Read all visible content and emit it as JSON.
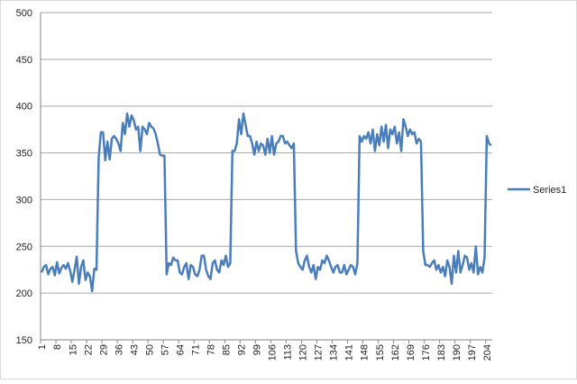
{
  "chart_data": {
    "type": "line",
    "categories": [
      "1",
      null,
      null,
      null,
      null,
      null,
      null,
      "8",
      null,
      null,
      null,
      null,
      null,
      null,
      "15",
      null,
      null,
      null,
      null,
      null,
      null,
      "22",
      null,
      null,
      null,
      null,
      null,
      null,
      "29",
      null,
      null,
      null,
      null,
      null,
      null,
      "36",
      null,
      null,
      null,
      null,
      null,
      null,
      "43",
      null,
      null,
      null,
      null,
      null,
      null,
      "50",
      null,
      null,
      null,
      null,
      null,
      null,
      "57",
      null,
      null,
      null,
      null,
      null,
      null,
      "64",
      null,
      null,
      null,
      null,
      null,
      null,
      "71",
      null,
      null,
      null,
      null,
      null,
      null,
      "78",
      null,
      null,
      null,
      null,
      null,
      null,
      "85",
      null,
      null,
      null,
      null,
      null,
      null,
      "92",
      null,
      null,
      null,
      null,
      null,
      null,
      "99",
      null,
      null,
      null,
      null,
      null,
      null,
      "106",
      null,
      null,
      null,
      null,
      null,
      null,
      "113",
      null,
      null,
      null,
      null,
      null,
      null,
      "120",
      null,
      null,
      null,
      null,
      null,
      null,
      "127",
      null,
      null,
      null,
      null,
      null,
      null,
      "134",
      null,
      null,
      null,
      null,
      null,
      null,
      "141",
      null,
      null,
      null,
      null,
      null,
      null,
      "148",
      null,
      null,
      null,
      null,
      null,
      null,
      "155",
      null,
      null,
      null,
      null,
      null,
      null,
      "162",
      null,
      null,
      null,
      null,
      null,
      null,
      "169",
      null,
      null,
      null,
      null,
      null,
      null,
      "176",
      null,
      null,
      null,
      null,
      null,
      null,
      "183",
      null,
      null,
      null,
      null,
      null,
      null,
      "190",
      null,
      null,
      null,
      null,
      null,
      null,
      "197",
      null,
      null,
      null,
      null,
      null,
      null,
      "204",
      null,
      null
    ],
    "series": [
      {
        "name": "Series1",
        "color": "#4a7ebb",
        "values": [
          222,
          228,
          230,
          220,
          226,
          228,
          219,
          233,
          221,
          227,
          230,
          226,
          232,
          224,
          212,
          225,
          239,
          210,
          228,
          235,
          214,
          222,
          218,
          202,
          226,
          225,
          345,
          372,
          372,
          342,
          362,
          343,
          365,
          368,
          365,
          360,
          352,
          382,
          370,
          392,
          378,
          390,
          385,
          375,
          378,
          352,
          378,
          375,
          370,
          382,
          378,
          376,
          370,
          360,
          348,
          347,
          347,
          220,
          232,
          230,
          238,
          235,
          235,
          222,
          220,
          228,
          232,
          215,
          230,
          228,
          220,
          218,
          225,
          240,
          240,
          225,
          218,
          215,
          232,
          235,
          225,
          222,
          235,
          230,
          240,
          228,
          232,
          352,
          352,
          360,
          386,
          370,
          392,
          380,
          368,
          368,
          360,
          348,
          362,
          352,
          360,
          358,
          348,
          365,
          350,
          368,
          348,
          360,
          362,
          368,
          368,
          360,
          362,
          358,
          355,
          360,
          245,
          232,
          228,
          225,
          235,
          240,
          228,
          222,
          230,
          215,
          228,
          225,
          235,
          232,
          240,
          235,
          228,
          222,
          228,
          230,
          222,
          222,
          230,
          220,
          225,
          230,
          228,
          220,
          232,
          368,
          362,
          368,
          365,
          372,
          360,
          375,
          352,
          370,
          358,
          378,
          362,
          380,
          355,
          375,
          370,
          378,
          360,
          372,
          352,
          386,
          378,
          368,
          375,
          370,
          372,
          360,
          365,
          362,
          245,
          230,
          230,
          228,
          232,
          235,
          225,
          230,
          222,
          228,
          218,
          235,
          228,
          210,
          240,
          222,
          245,
          222,
          230,
          240,
          238,
          225,
          232,
          222,
          250,
          220,
          228,
          222,
          238,
          368,
          360,
          358
        ]
      }
    ],
    "ylim": [
      150,
      500
    ],
    "yticks": [
      150,
      200,
      250,
      300,
      350,
      400,
      450,
      500
    ],
    "grid": true,
    "legend": "right"
  }
}
